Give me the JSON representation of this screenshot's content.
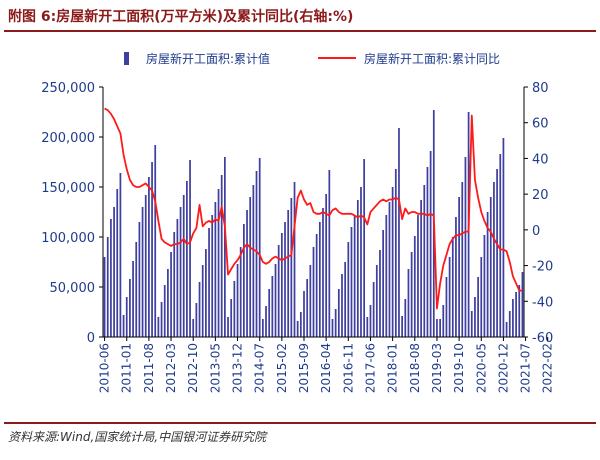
{
  "header": {
    "title": "附图 6:房屋新开工面积(万平方米)及累计同比(右轴:%)"
  },
  "footer": {
    "source": "资料来源:Wind,国家统计局,中国银河证券研究院"
  },
  "colors": {
    "bar": "#3f3f9f",
    "line": "#ff1a1a",
    "axis": "#1f3b8c",
    "title": "#8b1a1a"
  },
  "chart_data": {
    "type": "bar+line",
    "legend": {
      "placement": "top-right",
      "entries": [
        "房屋新开工面积:累计值",
        "房屋新开工面积:累计同比"
      ]
    },
    "grid": false,
    "y_left": {
      "min": 0,
      "max": 250000,
      "ticks": [
        "0",
        "50,000",
        "100,000",
        "150,000",
        "200,000",
        "250,000"
      ]
    },
    "y_right": {
      "min": -60,
      "max": 80,
      "ticks": [
        "-60",
        "-40",
        "-20",
        "0",
        "20",
        "40",
        "60",
        "80"
      ]
    },
    "x_tick_labels": [
      "2010-06",
      "2011-01",
      "2011-08",
      "2012-03",
      "2012-10",
      "2013-05",
      "2013-12",
      "2014-07",
      "2015-02",
      "2015-09",
      "2016-04",
      "2016-11",
      "2017-06",
      "2018-01",
      "2018-08",
      "2019-03",
      "2019-10",
      "2020-05",
      "2020-12",
      "2021-07",
      "2022-02"
    ],
    "series": [
      {
        "name": "房屋新开工面积:累计值",
        "kind": "bar",
        "axis": "left",
        "start": "2010-06",
        "values": [
          80000,
          100000,
          118000,
          130000,
          148000,
          164000,
          22000,
          40000,
          58000,
          76000,
          95000,
          115000,
          130000,
          142000,
          160000,
          175000,
          192000,
          20000,
          35000,
          52000,
          68000,
          85000,
          105000,
          118000,
          130000,
          142000,
          156000,
          177000,
          18000,
          34000,
          55000,
          72000,
          88000,
          109000,
          122000,
          135000,
          148000,
          162000,
          180000,
          20000,
          38000,
          56000,
          73000,
          90000,
          113000,
          127000,
          140000,
          152000,
          166000,
          179000,
          18000,
          31000,
          48000,
          61000,
          73000,
          92000,
          104000,
          115000,
          127000,
          139000,
          155000,
          16000,
          25000,
          46000,
          58000,
          72000,
          90000,
          103000,
          115000,
          129000,
          143000,
          167000,
          18000,
          28000,
          48000,
          63000,
          75000,
          95000,
          110000,
          122000,
          137000,
          150000,
          178000,
          20000,
          32000,
          55000,
          72000,
          87000,
          107000,
          122000,
          135000,
          150000,
          168000,
          209000,
          21000,
          38000,
          68000,
          85000,
          101000,
          122000,
          137000,
          152000,
          170000,
          186000,
          227000,
          18000,
          18000,
          32000,
          60000,
          80000,
          100000,
          120000,
          140000,
          155000,
          180000,
          225000,
          26000,
          40000,
          60000,
          80000,
          102000,
          125000,
          140000,
          155000,
          168000,
          183000,
          199000,
          15000,
          26000,
          38000,
          45000,
          52000,
          65000
        ]
      },
      {
        "name": "房屋新开工面积:累计同比",
        "kind": "line",
        "axis": "right",
        "start": "2010-06",
        "values": [
          68,
          67,
          65,
          62,
          58,
          54,
          42,
          34,
          28,
          25,
          24,
          24,
          25,
          26,
          24,
          22,
          16,
          5,
          -5,
          -7,
          -8,
          -9,
          -8,
          -8,
          -7,
          -5,
          -8,
          -7,
          -2,
          1,
          14,
          2,
          4,
          5,
          4,
          6,
          5,
          13,
          2,
          -25,
          -22,
          -19,
          -17,
          -14,
          -10,
          -8,
          -10,
          -11,
          -12,
          -14,
          -18,
          -19,
          -18,
          -16,
          -15,
          -16,
          -17,
          -16,
          -15,
          -14,
          2,
          18,
          22,
          17,
          14,
          15,
          10,
          9,
          9,
          10,
          9,
          8,
          11,
          12,
          10,
          9,
          9,
          9,
          9,
          8,
          7,
          8,
          7,
          3,
          10,
          12,
          14,
          16,
          17,
          16,
          17,
          17,
          18,
          17,
          6,
          12,
          9,
          10,
          10,
          9,
          9,
          9,
          8,
          9,
          8,
          -44,
          -30,
          -20,
          -14,
          -8,
          -5,
          -3,
          -3,
          -2,
          -1,
          -1,
          64,
          28,
          18,
          10,
          5,
          1,
          -1,
          -5,
          -8,
          -11,
          -11,
          -12,
          -18,
          -26,
          -30,
          -34,
          -34
        ]
      }
    ]
  }
}
